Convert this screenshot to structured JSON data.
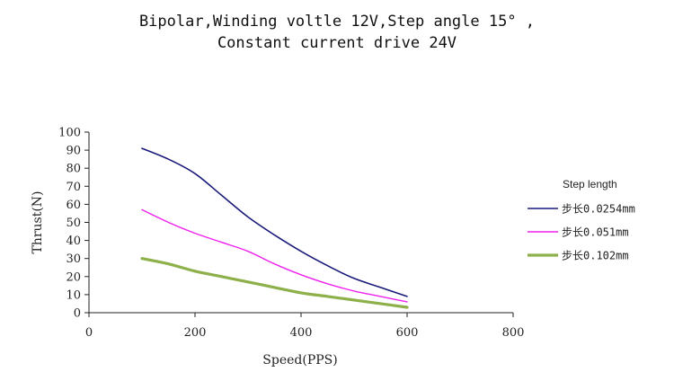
{
  "chart_data": {
    "type": "line",
    "title_lines": [
      "Bipolar,Winding voltle 12V,Step angle 15° ,",
      "Constant current drive 24V"
    ],
    "xlabel": "Speed(PPS)",
    "ylabel": "Thrust(N)",
    "xlim": [
      0,
      800
    ],
    "ylim": [
      0,
      100
    ],
    "xticks": [
      0,
      200,
      400,
      600,
      800
    ],
    "yticks": [
      0,
      10,
      20,
      30,
      40,
      50,
      60,
      70,
      80,
      90,
      100
    ],
    "grid": false,
    "legend_position": "right",
    "legend_title": "Step length",
    "series": [
      {
        "name": "步长0.0254mm",
        "color": "#1a1a7a",
        "x": [
          100,
          150,
          200,
          250,
          300,
          350,
          400,
          450,
          500,
          550,
          600
        ],
        "y": [
          91,
          85,
          77,
          65,
          53,
          43,
          34,
          26,
          19,
          14,
          9
        ]
      },
      {
        "name": "步长0.051mm",
        "color": "#ee22ee",
        "x": [
          100,
          150,
          200,
          250,
          300,
          350,
          400,
          450,
          500,
          550,
          600
        ],
        "y": [
          57,
          50,
          44,
          39,
          34,
          27,
          21,
          16,
          12,
          9,
          6
        ]
      },
      {
        "name": "步长0.102mm",
        "color": "#8db04a",
        "x": [
          100,
          150,
          200,
          250,
          300,
          350,
          400,
          450,
          500,
          550,
          600
        ],
        "y": [
          30,
          27,
          23,
          20,
          17,
          14,
          11,
          9,
          7,
          5,
          3
        ]
      }
    ]
  }
}
